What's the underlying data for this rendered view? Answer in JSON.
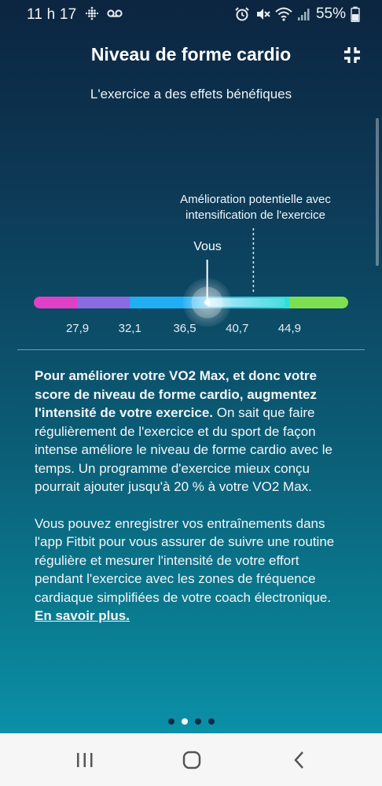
{
  "status_bar": {
    "time": "11 h 17",
    "battery_percent": "55%",
    "left_icons": [
      "fitbit-icon",
      "voicemail-icon"
    ],
    "right_icons": [
      "alarm-icon",
      "mute-icon",
      "wifi-icon",
      "signal-icon",
      "battery-icon"
    ]
  },
  "header": {
    "title": "Niveau de forme cardio",
    "collapse_icon": "collapse-icon"
  },
  "subtitle": "L'exercice a des effets bénéfiques",
  "chart_data": {
    "type": "range-scale",
    "tick_labels": [
      "27,9",
      "32,1",
      "36,5",
      "40,7",
      "44,9"
    ],
    "ticks": [
      27.9,
      32.1,
      36.5,
      40.7,
      44.9
    ],
    "range": [
      24.4,
      49.6
    ],
    "segment_colors": [
      "#e040c8",
      "#8a6be0",
      "#22aef2",
      "#2fe0d8",
      "#7ee04f"
    ],
    "you_label": "Vous",
    "you_value": 38.3,
    "potential_label": "Amélioration potentielle avec intensification de l'exercice",
    "potential_value": 42.0
  },
  "body": {
    "p1_bold": "Pour améliorer votre VO2 Max, et donc votre score de niveau de forme cardio, augmentez l'intensité de votre exercice.",
    "p1_rest": " On sait que faire régulièrement de l'exercice et du sport de façon intense améliore le niveau de forme cardio avec le temps. Un programme d'exercice mieux conçu pourrait ajouter jusqu'à 20 % à votre VO2 Max.",
    "p2": "Vous pouvez enregistrer vos entraînements dans l'app Fitbit pour vous assurer de suivre une routine régulière et mesurer l'intensité de votre effort pendant l'exercice avec les zones de fréquence cardiaque simplifiées de votre coach électronique. ",
    "link": "En savoir plus."
  },
  "pager": {
    "count": 4,
    "active_index": 1
  },
  "nav_bar": {
    "icons": [
      "recents-icon",
      "home-icon",
      "back-icon"
    ]
  }
}
